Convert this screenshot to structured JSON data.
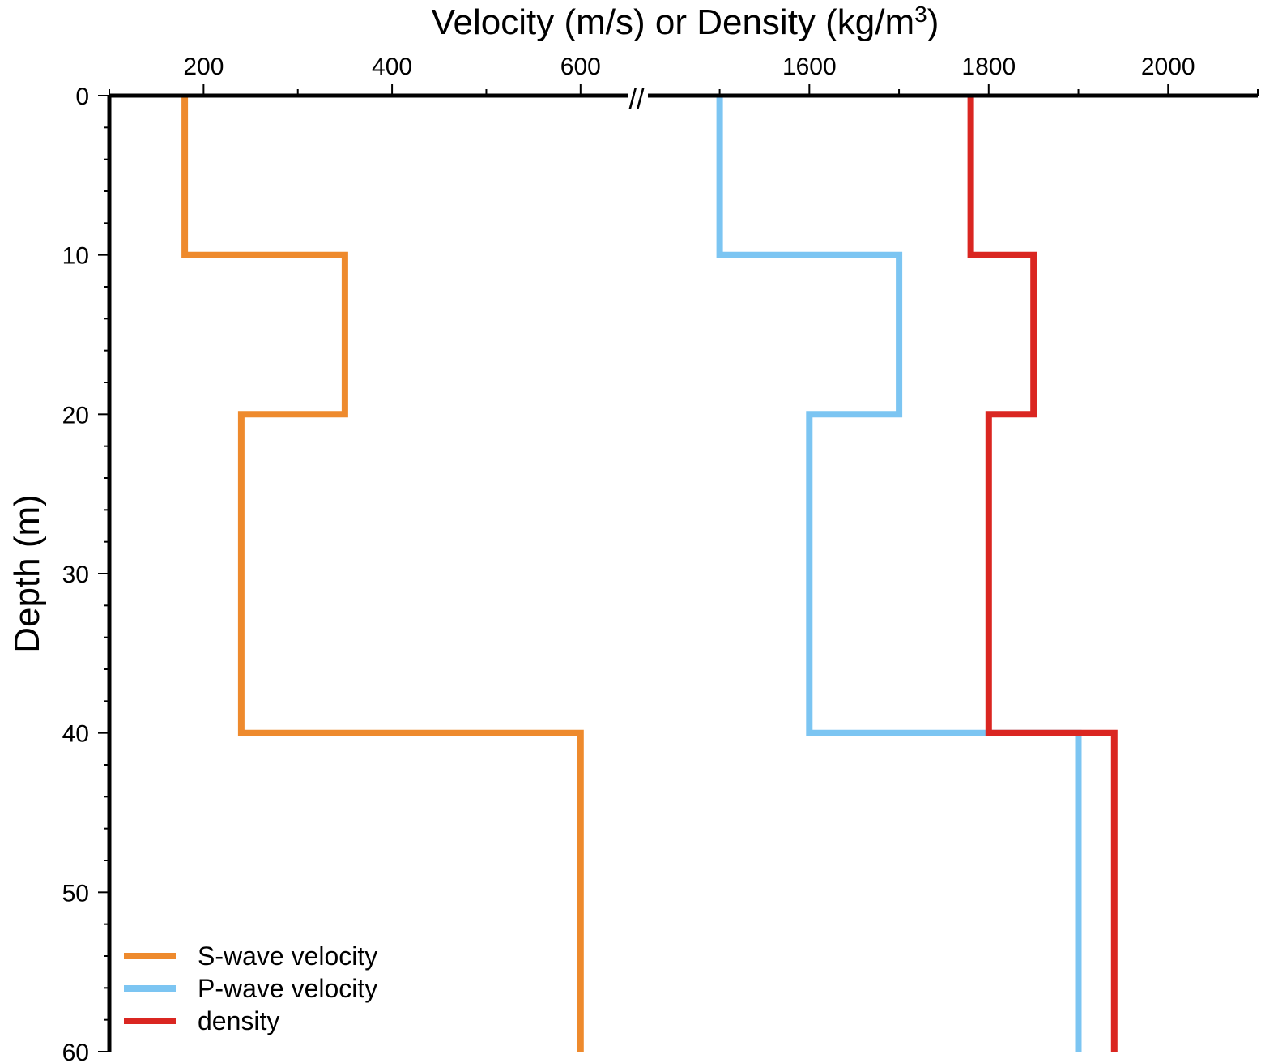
{
  "chart_data": {
    "type": "line",
    "title": "",
    "xlabel": "Velocity (m/s) or Density (kg/m3)",
    "xlabel_parts": {
      "main": "Velocity (m/s) or Density (kg/m",
      "sup": "3",
      "tail": ")"
    },
    "ylabel": "Depth (m)",
    "x_axis_position": "top",
    "y_inverted": true,
    "ylim": [
      0,
      60
    ],
    "y_ticks": [
      "0",
      "10",
      "20",
      "30",
      "40",
      "50",
      "60"
    ],
    "x_axis_break": {
      "symbol": "//",
      "left_range": [
        100,
        650
      ],
      "right_range": [
        1420,
        2100
      ]
    },
    "x_ticks_left": [
      "200",
      "400",
      "600"
    ],
    "x_ticks_right": [
      "1600",
      "1800",
      "2000"
    ],
    "legend_position": "bottom-left",
    "series": [
      {
        "name": "S-wave velocity",
        "color": "#EE8A2D",
        "points": [
          [
            180,
            0
          ],
          [
            180,
            10
          ],
          [
            350,
            10
          ],
          [
            350,
            20
          ],
          [
            240,
            20
          ],
          [
            240,
            40
          ],
          [
            600,
            40
          ],
          [
            600,
            60
          ]
        ]
      },
      {
        "name": "P-wave velocity",
        "color": "#7CC5F2",
        "points": [
          [
            1500,
            0
          ],
          [
            1500,
            10
          ],
          [
            1700,
            10
          ],
          [
            1700,
            20
          ],
          [
            1600,
            20
          ],
          [
            1600,
            40
          ],
          [
            1900,
            40
          ],
          [
            1900,
            60
          ]
        ]
      },
      {
        "name": "density",
        "color": "#DA2621",
        "points": [
          [
            1780,
            0
          ],
          [
            1780,
            10
          ],
          [
            1850,
            10
          ],
          [
            1850,
            20
          ],
          [
            1800,
            20
          ],
          [
            1800,
            40
          ],
          [
            1940,
            40
          ],
          [
            1940,
            60
          ]
        ]
      }
    ]
  }
}
